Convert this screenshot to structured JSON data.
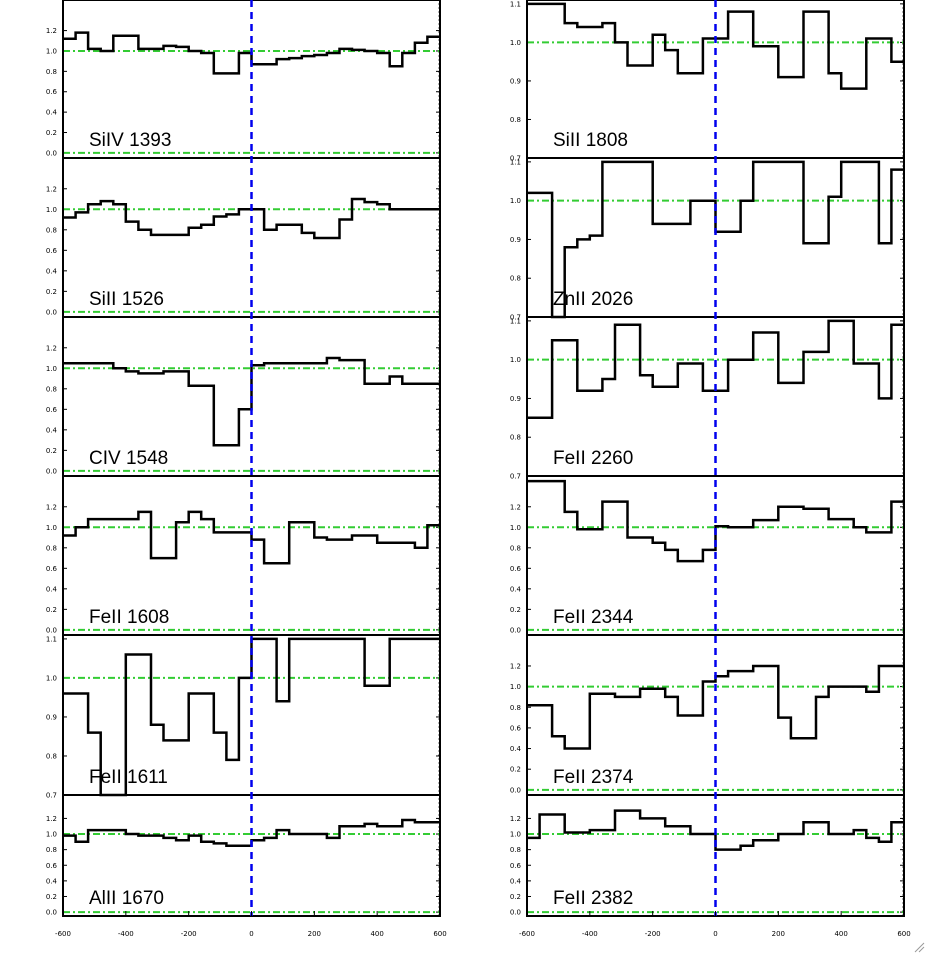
{
  "chart_data": [
    {
      "type": "line",
      "label": "SiIV 1393",
      "x": [
        -600,
        -560,
        -520,
        -480,
        -440,
        -400,
        -360,
        -320,
        -280,
        -240,
        -200,
        -160,
        -120,
        -80,
        -40,
        0,
        40,
        80,
        120,
        160,
        200,
        240,
        280,
        320,
        360,
        400,
        440,
        480,
        520,
        560,
        600
      ],
      "y": [
        1.12,
        1.18,
        1.02,
        1.0,
        1.15,
        1.15,
        1.02,
        1.02,
        1.05,
        1.04,
        1.0,
        0.98,
        0.78,
        0.78,
        0.98,
        0.87,
        0.87,
        0.92,
        0.93,
        0.95,
        0.96,
        0.98,
        1.02,
        1.01,
        1.0,
        0.98,
        0.85,
        0.98,
        1.08,
        1.14,
        1.14
      ],
      "xlim": [
        -600,
        600
      ],
      "ylim": [
        -0.05,
        1.5
      ],
      "yticks": [
        "0.0",
        "0.2",
        "0.4",
        "0.6",
        "0.8",
        "1.0",
        "1.2"
      ],
      "ytick_values": [
        0.0,
        0.2,
        0.4,
        0.6,
        0.8,
        1.0,
        1.2
      ]
    },
    {
      "type": "line",
      "label": "SiII 1526",
      "x": [
        -600,
        -560,
        -520,
        -480,
        -440,
        -400,
        -360,
        -320,
        -280,
        -240,
        -200,
        -160,
        -120,
        -80,
        -40,
        0,
        40,
        80,
        120,
        160,
        200,
        240,
        280,
        320,
        360,
        400,
        440,
        480,
        520,
        560,
        600
      ],
      "y": [
        0.92,
        0.97,
        1.05,
        1.08,
        1.05,
        0.88,
        0.8,
        0.75,
        0.75,
        0.75,
        0.82,
        0.85,
        0.93,
        0.95,
        1.0,
        1.0,
        0.8,
        0.85,
        0.85,
        0.77,
        0.72,
        0.72,
        0.9,
        1.1,
        1.07,
        1.05,
        1.0,
        1.0,
        1.0,
        1.0,
        1.0
      ],
      "xlim": [
        -600,
        600
      ],
      "ylim": [
        -0.05,
        1.5
      ],
      "yticks": [
        "0.0",
        "0.2",
        "0.4",
        "0.6",
        "0.8",
        "1.0",
        "1.2"
      ],
      "ytick_values": [
        0.0,
        0.2,
        0.4,
        0.6,
        0.8,
        1.0,
        1.2
      ]
    },
    {
      "type": "line",
      "label": "CIV 1548",
      "x": [
        -600,
        -560,
        -520,
        -480,
        -440,
        -400,
        -360,
        -320,
        -280,
        -240,
        -200,
        -160,
        -120,
        -80,
        -40,
        0,
        40,
        80,
        120,
        160,
        200,
        240,
        280,
        320,
        360,
        400,
        440,
        480,
        520,
        560,
        600
      ],
      "y": [
        1.05,
        1.05,
        1.05,
        1.05,
        1.0,
        0.97,
        0.95,
        0.95,
        0.97,
        0.97,
        0.83,
        0.83,
        0.25,
        0.25,
        0.6,
        1.03,
        1.05,
        1.05,
        1.05,
        1.05,
        1.05,
        1.1,
        1.08,
        1.08,
        0.85,
        0.85,
        0.92,
        0.85,
        0.85,
        0.85,
        0.85
      ],
      "xlim": [
        -600,
        600
      ],
      "ylim": [
        -0.05,
        1.5
      ],
      "yticks": [
        "0.0",
        "0.2",
        "0.4",
        "0.6",
        "0.8",
        "1.0",
        "1.2"
      ],
      "ytick_values": [
        0.0,
        0.2,
        0.4,
        0.6,
        0.8,
        1.0,
        1.2
      ]
    },
    {
      "type": "line",
      "label": "FeII 1608",
      "x": [
        -600,
        -560,
        -520,
        -480,
        -440,
        -400,
        -360,
        -320,
        -280,
        -240,
        -200,
        -160,
        -120,
        -80,
        -40,
        0,
        40,
        80,
        120,
        160,
        200,
        240,
        280,
        320,
        360,
        400,
        440,
        480,
        520,
        560,
        600
      ],
      "y": [
        0.92,
        1.0,
        1.08,
        1.08,
        1.08,
        1.08,
        1.15,
        0.7,
        0.7,
        1.05,
        1.15,
        1.08,
        0.95,
        0.95,
        0.95,
        0.88,
        0.65,
        0.65,
        1.05,
        1.05,
        0.9,
        0.88,
        0.88,
        0.92,
        0.92,
        0.85,
        0.85,
        0.85,
        0.8,
        1.02,
        1.02
      ],
      "xlim": [
        -600,
        600
      ],
      "ylim": [
        -0.05,
        1.5
      ],
      "yticks": [
        "0.0",
        "0.2",
        "0.4",
        "0.6",
        "0.8",
        "1.0",
        "1.2"
      ],
      "ytick_values": [
        0.0,
        0.2,
        0.4,
        0.6,
        0.8,
        1.0,
        1.2
      ]
    },
    {
      "type": "line",
      "label": "FeII 1611",
      "x": [
        -600,
        -560,
        -520,
        -480,
        -440,
        -400,
        -360,
        -320,
        -280,
        -240,
        -200,
        -160,
        -120,
        -80,
        -40,
        0,
        40,
        80,
        120,
        160,
        200,
        240,
        280,
        320,
        360,
        400,
        440,
        480,
        520,
        560,
        600
      ],
      "y": [
        0.96,
        0.96,
        0.86,
        0.7,
        0.7,
        1.06,
        1.06,
        0.88,
        0.84,
        0.84,
        0.96,
        0.96,
        0.86,
        0.79,
        1.0,
        1.1,
        1.1,
        0.94,
        1.1,
        1.1,
        1.1,
        1.1,
        1.1,
        1.1,
        0.98,
        0.98,
        1.1,
        1.1,
        1.1,
        1.1,
        1.1
      ],
      "xlim": [
        -600,
        600
      ],
      "ylim": [
        0.7,
        1.11
      ],
      "yticks": [
        "0.7",
        "0.8",
        "0.9",
        "1.0",
        "1.1"
      ],
      "ytick_values": [
        0.7,
        0.8,
        0.9,
        1.0,
        1.1
      ]
    },
    {
      "type": "line",
      "label": "AlII 1670",
      "x": [
        -600,
        -560,
        -520,
        -480,
        -440,
        -400,
        -360,
        -320,
        -280,
        -240,
        -200,
        -160,
        -120,
        -80,
        -40,
        0,
        40,
        80,
        120,
        160,
        200,
        240,
        280,
        320,
        360,
        400,
        440,
        480,
        520,
        560,
        600
      ],
      "y": [
        0.98,
        0.9,
        1.05,
        1.05,
        1.05,
        1.0,
        0.98,
        0.98,
        0.95,
        0.92,
        0.98,
        0.9,
        0.88,
        0.85,
        0.85,
        0.92,
        0.95,
        1.05,
        1.0,
        1.0,
        1.0,
        0.95,
        1.1,
        1.1,
        1.13,
        1.1,
        1.1,
        1.18,
        1.15,
        1.15,
        1.15
      ],
      "xlim": [
        -600,
        600
      ],
      "ylim": [
        -0.05,
        1.5
      ],
      "yticks": [
        "0.0",
        "0.2",
        "0.4",
        "0.6",
        "0.8",
        "1.0",
        "1.2"
      ],
      "ytick_values": [
        0.0,
        0.2,
        0.4,
        0.6,
        0.8,
        1.0,
        1.2
      ]
    },
    {
      "type": "line",
      "label": "SiII 1808",
      "x": [
        -600,
        -560,
        -520,
        -480,
        -440,
        -400,
        -360,
        -320,
        -280,
        -240,
        -200,
        -160,
        -120,
        -80,
        -40,
        0,
        40,
        80,
        120,
        160,
        200,
        240,
        280,
        320,
        360,
        400,
        440,
        480,
        520,
        560,
        600
      ],
      "y": [
        1.1,
        1.1,
        1.1,
        1.05,
        1.04,
        1.04,
        1.05,
        1.0,
        0.94,
        0.94,
        1.02,
        0.98,
        0.92,
        0.92,
        1.01,
        1.01,
        1.08,
        1.08,
        0.99,
        0.99,
        0.91,
        0.91,
        1.08,
        1.08,
        0.92,
        0.88,
        0.88,
        1.01,
        1.01,
        0.95,
        0.95
      ],
      "xlim": [
        -600,
        600
      ],
      "ylim": [
        0.7,
        1.11
      ],
      "yticks": [
        "0.7",
        "0.8",
        "0.9",
        "1.0",
        "1.1"
      ],
      "ytick_values": [
        0.7,
        0.8,
        0.9,
        1.0,
        1.1
      ]
    },
    {
      "type": "line",
      "label": "ZnII 2026",
      "x": [
        -600,
        -560,
        -520,
        -480,
        -440,
        -400,
        -360,
        -320,
        -280,
        -240,
        -200,
        -160,
        -120,
        -80,
        -40,
        0,
        40,
        80,
        120,
        160,
        200,
        240,
        280,
        320,
        360,
        400,
        440,
        480,
        520,
        560,
        600
      ],
      "y": [
        1.02,
        1.02,
        0.7,
        0.88,
        0.9,
        0.91,
        1.1,
        1.1,
        1.1,
        1.1,
        0.94,
        0.94,
        0.94,
        1.0,
        1.0,
        0.92,
        0.92,
        1.0,
        1.1,
        1.1,
        1.1,
        1.1,
        0.89,
        0.89,
        1.01,
        1.1,
        1.1,
        1.1,
        0.89,
        1.08,
        1.08
      ],
      "xlim": [
        -600,
        600
      ],
      "ylim": [
        0.7,
        1.11
      ],
      "yticks": [
        "0.7",
        "0.8",
        "0.9",
        "1.0",
        "1.1"
      ],
      "ytick_values": [
        0.7,
        0.8,
        0.9,
        1.0,
        1.1
      ]
    },
    {
      "type": "line",
      "label": "FeII 2260",
      "x": [
        -600,
        -560,
        -520,
        -480,
        -440,
        -400,
        -360,
        -320,
        -280,
        -240,
        -200,
        -160,
        -120,
        -80,
        -40,
        0,
        40,
        80,
        120,
        160,
        200,
        240,
        280,
        320,
        360,
        400,
        440,
        480,
        520,
        560,
        600
      ],
      "y": [
        0.85,
        0.85,
        1.05,
        1.05,
        0.92,
        0.92,
        0.95,
        1.09,
        1.09,
        0.96,
        0.93,
        0.93,
        0.99,
        0.99,
        0.92,
        0.92,
        1.0,
        1.0,
        1.07,
        1.07,
        0.94,
        0.94,
        1.02,
        1.02,
        1.1,
        1.1,
        0.99,
        0.99,
        0.9,
        1.09,
        1.09
      ],
      "xlim": [
        -600,
        600
      ],
      "ylim": [
        0.7,
        1.11
      ],
      "yticks": [
        "0.7",
        "0.8",
        "0.9",
        "1.0",
        "1.1"
      ],
      "ytick_values": [
        0.7,
        0.8,
        0.9,
        1.0,
        1.1
      ]
    },
    {
      "type": "line",
      "label": "FeII 2344",
      "x": [
        -600,
        -560,
        -520,
        -480,
        -440,
        -400,
        -360,
        -320,
        -280,
        -240,
        -200,
        -160,
        -120,
        -80,
        -40,
        0,
        40,
        80,
        120,
        160,
        200,
        240,
        280,
        320,
        360,
        400,
        440,
        480,
        520,
        560,
        600
      ],
      "y": [
        1.45,
        1.45,
        1.45,
        1.15,
        0.98,
        0.98,
        1.25,
        1.25,
        0.9,
        0.9,
        0.85,
        0.78,
        0.67,
        0.67,
        0.78,
        1.01,
        1.0,
        1.0,
        1.07,
        1.07,
        1.2,
        1.2,
        1.18,
        1.18,
        1.08,
        1.08,
        1.0,
        0.95,
        0.95,
        1.25,
        1.25
      ],
      "xlim": [
        -600,
        600
      ],
      "ylim": [
        -0.05,
        1.5
      ],
      "yticks": [
        "0.0",
        "0.2",
        "0.4",
        "0.6",
        "0.8",
        "1.0",
        "1.2"
      ],
      "ytick_values": [
        0.0,
        0.2,
        0.4,
        0.6,
        0.8,
        1.0,
        1.2
      ]
    },
    {
      "type": "line",
      "label": "FeII 2374",
      "x": [
        -600,
        -560,
        -520,
        -480,
        -440,
        -400,
        -360,
        -320,
        -280,
        -240,
        -200,
        -160,
        -120,
        -80,
        -40,
        0,
        40,
        80,
        120,
        160,
        200,
        240,
        280,
        320,
        360,
        400,
        440,
        480,
        520,
        560,
        600
      ],
      "y": [
        0.82,
        0.82,
        0.52,
        0.4,
        0.4,
        0.93,
        0.93,
        0.9,
        0.9,
        0.98,
        0.98,
        0.9,
        0.72,
        0.72,
        1.05,
        1.1,
        1.15,
        1.15,
        1.2,
        1.2,
        0.7,
        0.5,
        0.5,
        0.9,
        1.0,
        1.0,
        1.0,
        0.95,
        1.2,
        1.2,
        1.2
      ],
      "xlim": [
        -600,
        600
      ],
      "ylim": [
        -0.05,
        1.5
      ],
      "yticks": [
        "0.0",
        "0.2",
        "0.4",
        "0.6",
        "0.8",
        "1.0",
        "1.2"
      ],
      "ytick_values": [
        0.0,
        0.2,
        0.4,
        0.6,
        0.8,
        1.0,
        1.2
      ]
    },
    {
      "type": "line",
      "label": "FeII 2382",
      "x": [
        -600,
        -560,
        -520,
        -480,
        -440,
        -400,
        -360,
        -320,
        -280,
        -240,
        -200,
        -160,
        -120,
        -80,
        -40,
        0,
        40,
        80,
        120,
        160,
        200,
        240,
        280,
        320,
        360,
        400,
        440,
        480,
        520,
        560,
        600
      ],
      "y": [
        0.95,
        1.25,
        1.25,
        1.02,
        1.02,
        1.05,
        1.05,
        1.3,
        1.3,
        1.2,
        1.2,
        1.1,
        1.1,
        1.0,
        1.0,
        0.8,
        0.8,
        0.85,
        0.92,
        0.92,
        1.0,
        1.0,
        1.15,
        1.15,
        1.0,
        1.0,
        1.05,
        0.95,
        0.9,
        1.15,
        1.15
      ],
      "xlim": [
        -600,
        600
      ],
      "ylim": [
        -0.05,
        1.5
      ],
      "yticks": [
        "0.0",
        "0.2",
        "0.4",
        "0.6",
        "0.8",
        "1.0",
        "1.2"
      ],
      "ytick_values": [
        0.0,
        0.2,
        0.4,
        0.6,
        0.8,
        1.0,
        1.2
      ]
    }
  ],
  "x_axis": {
    "ticks": [
      "-600",
      "-400",
      "-200",
      "0",
      "200",
      "400",
      "600"
    ],
    "tick_values": [
      -600,
      -400,
      -200,
      0,
      200,
      400,
      600
    ]
  },
  "colors": {
    "spectrum": "#000000",
    "continuum_line": "#33cc33",
    "zero_velocity_line": "#0000ee",
    "frame": "#000000"
  },
  "reference_lines": {
    "continuum_level": 1.0,
    "zero_level": 0.0,
    "zero_velocity": 0
  },
  "icons": {
    "corner": "resize-grip-icon"
  }
}
